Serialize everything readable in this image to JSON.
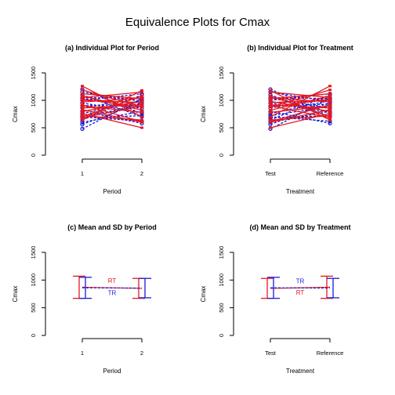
{
  "title": "Equivalence Plots for Cmax",
  "colors": {
    "R": "#e8161c",
    "T": "#1a1ad6",
    "axis": "#000000"
  },
  "chart_data": [
    {
      "type": "line",
      "panel": "a",
      "title": "(a) Individual Plot for Period",
      "xlabel": "Period",
      "ylabel": "Cmax",
      "x_ticks": [
        "1",
        "2"
      ],
      "y_ticks": [
        "0",
        "500",
        "1000",
        "1500"
      ],
      "ylim": [
        0,
        1500
      ],
      "series": [
        {
          "name": "RT",
          "values": [
            [
              1260,
              700
            ],
            [
              1190,
              880
            ],
            [
              1120,
              1030
            ],
            [
              1080,
              820
            ],
            [
              1050,
              1150
            ],
            [
              1020,
              880
            ],
            [
              1000,
              960
            ],
            [
              970,
              1040
            ],
            [
              920,
              610
            ],
            [
              900,
              780
            ],
            [
              860,
              920
            ],
            [
              830,
              600
            ],
            [
              800,
              980
            ],
            [
              760,
              500
            ],
            [
              720,
              640
            ],
            [
              700,
              1080
            ],
            [
              680,
              900
            ],
            [
              640,
              1180
            ]
          ]
        },
        {
          "name": "TR",
          "values": [
            [
              480,
              1030
            ],
            [
              560,
              960
            ],
            [
              600,
              800
            ],
            [
              640,
              1100
            ],
            [
              680,
              720
            ],
            [
              720,
              890
            ],
            [
              760,
              1000
            ],
            [
              800,
              580
            ],
            [
              860,
              1050
            ],
            [
              900,
              930
            ],
            [
              950,
              780
            ],
            [
              1000,
              1120
            ],
            [
              1040,
              850
            ],
            [
              1100,
              700
            ],
            [
              1150,
              980
            ],
            [
              1200,
              760
            ],
            [
              1050,
              1030
            ],
            [
              700,
              620
            ]
          ]
        }
      ]
    },
    {
      "type": "line",
      "panel": "b",
      "title": "(b) Individual Plot for Treatment",
      "xlabel": "Treatment",
      "ylabel": "Cmax",
      "x_ticks": [
        "Test",
        "Reference"
      ],
      "y_ticks": [
        "0",
        "500",
        "1000",
        "1500"
      ],
      "ylim": [
        0,
        1500
      ],
      "series": [
        {
          "name": "RT",
          "values": [
            [
              700,
              1260
            ],
            [
              880,
              1190
            ],
            [
              1030,
              1120
            ],
            [
              820,
              1080
            ],
            [
              1150,
              1050
            ],
            [
              880,
              1020
            ],
            [
              960,
              1000
            ],
            [
              1040,
              970
            ],
            [
              610,
              920
            ],
            [
              780,
              900
            ],
            [
              920,
              860
            ],
            [
              600,
              830
            ],
            [
              980,
              800
            ],
            [
              500,
              760
            ],
            [
              640,
              720
            ],
            [
              1080,
              700
            ],
            [
              900,
              680
            ],
            [
              1180,
              640
            ]
          ]
        },
        {
          "name": "TR",
          "values": [
            [
              480,
              1030
            ],
            [
              560,
              960
            ],
            [
              600,
              800
            ],
            [
              640,
              1100
            ],
            [
              680,
              720
            ],
            [
              720,
              890
            ],
            [
              760,
              1000
            ],
            [
              800,
              580
            ],
            [
              860,
              1050
            ],
            [
              900,
              930
            ],
            [
              950,
              780
            ],
            [
              1000,
              1120
            ],
            [
              1040,
              850
            ],
            [
              1100,
              700
            ],
            [
              1150,
              980
            ],
            [
              1200,
              760
            ],
            [
              1050,
              1030
            ],
            [
              700,
              620
            ]
          ]
        }
      ]
    },
    {
      "type": "line",
      "panel": "c",
      "title": "(c) Mean and SD by Period",
      "xlabel": "Period",
      "ylabel": "Cmax",
      "x_ticks": [
        "1",
        "2"
      ],
      "y_ticks": [
        "0",
        "500",
        "1000",
        "1500"
      ],
      "ylim": [
        0,
        1500
      ],
      "series": [
        {
          "name": "RT",
          "label": "RT",
          "mean": [
            870,
            850
          ],
          "sd": [
            200,
            180
          ]
        },
        {
          "name": "TR",
          "label": "TR",
          "mean": [
            860,
            855
          ],
          "sd": [
            190,
            175
          ]
        }
      ]
    },
    {
      "type": "line",
      "panel": "d",
      "title": "(d) Mean and SD by Treatment",
      "xlabel": "Treatment",
      "ylabel": "Cmax",
      "x_ticks": [
        "Test",
        "Reference"
      ],
      "y_ticks": [
        "0",
        "500",
        "1000",
        "1500"
      ],
      "ylim": [
        0,
        1500
      ],
      "series": [
        {
          "name": "RT",
          "label": "RT",
          "mean": [
            850,
            870
          ],
          "sd": [
            180,
            200
          ]
        },
        {
          "name": "TR",
          "label": "TR",
          "mean": [
            860,
            855
          ],
          "sd": [
            190,
            175
          ]
        }
      ]
    }
  ]
}
